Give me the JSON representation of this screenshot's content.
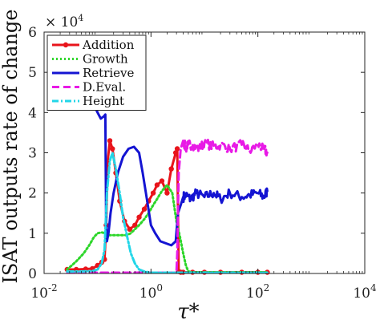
{
  "chart_data": {
    "type": "line",
    "xlabel": "τ*",
    "ylabel": "ISAT outputs rate of change",
    "y_multiplier_label": "× 10",
    "y_multiplier_exponent": "4",
    "xscale": "log",
    "xlim": [
      0.01,
      10000
    ],
    "ylim": [
      0,
      6
    ],
    "grid": false,
    "legend_position": "top-left",
    "x_ticks": [
      {
        "value": 0.01,
        "base": "10",
        "exp": "-2"
      },
      {
        "value": 1,
        "base": "10",
        "exp": "0"
      },
      {
        "value": 100,
        "base": "10",
        "exp": "2"
      },
      {
        "value": 10000,
        "base": "10",
        "exp": "4"
      }
    ],
    "y_ticks": [
      {
        "value": 0,
        "label": "0"
      },
      {
        "value": 1,
        "label": "1"
      },
      {
        "value": 2,
        "label": "2"
      },
      {
        "value": 3,
        "label": "3"
      },
      {
        "value": 4,
        "label": "4"
      },
      {
        "value": 5,
        "label": "5"
      },
      {
        "value": 6,
        "label": "6"
      }
    ],
    "series": [
      {
        "name": "Addition",
        "color": "#e8141b",
        "style": "solid-dot",
        "x": [
          0.027,
          0.04,
          0.06,
          0.08,
          0.1,
          0.12,
          0.135,
          0.145,
          0.155,
          0.17,
          0.19,
          0.22,
          0.26,
          0.32,
          0.4,
          0.5,
          0.6,
          0.75,
          0.9,
          1.1,
          1.3,
          1.6,
          2.0,
          2.4,
          2.9,
          3.1,
          3.3,
          3.6,
          4,
          6,
          10,
          20,
          50,
          100,
          150
        ],
        "y": [
          0.1,
          0.1,
          0.11,
          0.12,
          0.2,
          0.28,
          0.35,
          1.2,
          2.8,
          3.3,
          3.1,
          2.5,
          1.8,
          1.3,
          1.1,
          1.2,
          1.4,
          1.6,
          1.8,
          2.0,
          2.2,
          2.3,
          2.0,
          2.6,
          3.0,
          3.1,
          0.05,
          0.03,
          0.03,
          0.03,
          0.03,
          0.03,
          0.03,
          0.03,
          0.03
        ]
      },
      {
        "name": "Growth",
        "color": "#2dd62a",
        "style": "dotted",
        "x": [
          0.027,
          0.04,
          0.055,
          0.07,
          0.085,
          0.1,
          0.12,
          0.14,
          0.16,
          0.19,
          0.23,
          0.28,
          0.35,
          0.42,
          0.5,
          0.6,
          0.75,
          0.9,
          1.1,
          1.3,
          1.6,
          2.0,
          2.5,
          3.0,
          3.5,
          4.0,
          4.5,
          5,
          6,
          10,
          20,
          50,
          100,
          150
        ],
        "y": [
          0.1,
          0.3,
          0.5,
          0.7,
          0.9,
          1.0,
          1.02,
          1.0,
          0.95,
          0.95,
          0.95,
          0.95,
          0.95,
          1.0,
          1.1,
          1.2,
          1.35,
          1.5,
          1.7,
          1.85,
          2.05,
          2.2,
          2.0,
          1.3,
          0.9,
          0.5,
          0.2,
          0.05,
          0.03,
          0.03,
          0.03,
          0.03,
          0.03,
          0.03
        ]
      },
      {
        "name": "Retrieve",
        "color": "#1414d2",
        "style": "solid",
        "x": [
          0.07,
          0.085,
          0.1,
          0.115,
          0.13,
          0.14,
          0.145,
          0.15,
          0.16,
          0.175,
          0.2,
          0.24,
          0.3,
          0.38,
          0.48,
          0.6,
          0.7,
          0.85,
          1.0,
          1.2,
          1.5,
          1.9,
          2.4,
          2.9,
          3.2,
          3.6,
          4.0,
          4.5,
          5.5,
          7,
          10,
          15,
          20,
          30,
          50,
          70,
          100,
          130,
          150
        ],
        "y": [
          4.5,
          4.2,
          4.0,
          3.85,
          3.9,
          3.95,
          1.2,
          0.8,
          1.0,
          1.5,
          2.0,
          2.5,
          2.9,
          3.1,
          3.15,
          3.0,
          2.5,
          1.8,
          1.2,
          1.0,
          0.8,
          0.75,
          0.7,
          0.8,
          1.5,
          1.7,
          1.9,
          1.95,
          1.85,
          2.0,
          1.9,
          2.0,
          1.85,
          2.0,
          1.9,
          1.95,
          2.0,
          1.9,
          2.05
        ]
      },
      {
        "name": "D.Eval.",
        "color": "#e81ae6",
        "style": "dashed",
        "x": [
          0.027,
          0.1,
          0.5,
          1,
          2,
          3.0,
          3.1,
          3.3,
          3.6,
          4.0,
          4.5,
          5,
          6,
          8,
          10,
          15,
          20,
          30,
          50,
          70,
          100,
          130,
          150
        ],
        "y": [
          0.02,
          0.02,
          0.02,
          0.02,
          0.02,
          0.02,
          0.5,
          2.5,
          3.1,
          3.3,
          3.1,
          3.2,
          3.2,
          3.1,
          3.25,
          3.15,
          3.2,
          3.1,
          3.2,
          3.05,
          3.2,
          3.1,
          3.0
        ]
      },
      {
        "name": "Height",
        "color": "#22d6e8",
        "style": "dashdot",
        "x": [
          0.027,
          0.05,
          0.08,
          0.1,
          0.12,
          0.135,
          0.15,
          0.17,
          0.19,
          0.22,
          0.26,
          0.3,
          0.36,
          0.42,
          0.5,
          0.6,
          0.75,
          0.9,
          1.0,
          2,
          5,
          10,
          50,
          100,
          150
        ],
        "y": [
          0.05,
          0.05,
          0.06,
          0.1,
          0.25,
          0.6,
          2.0,
          2.8,
          3.0,
          2.6,
          2.0,
          1.4,
          0.9,
          0.5,
          0.25,
          0.1,
          0.05,
          0.03,
          0.02,
          0.02,
          0.02,
          0.02,
          0.02,
          0.02,
          0.02
        ]
      }
    ]
  }
}
